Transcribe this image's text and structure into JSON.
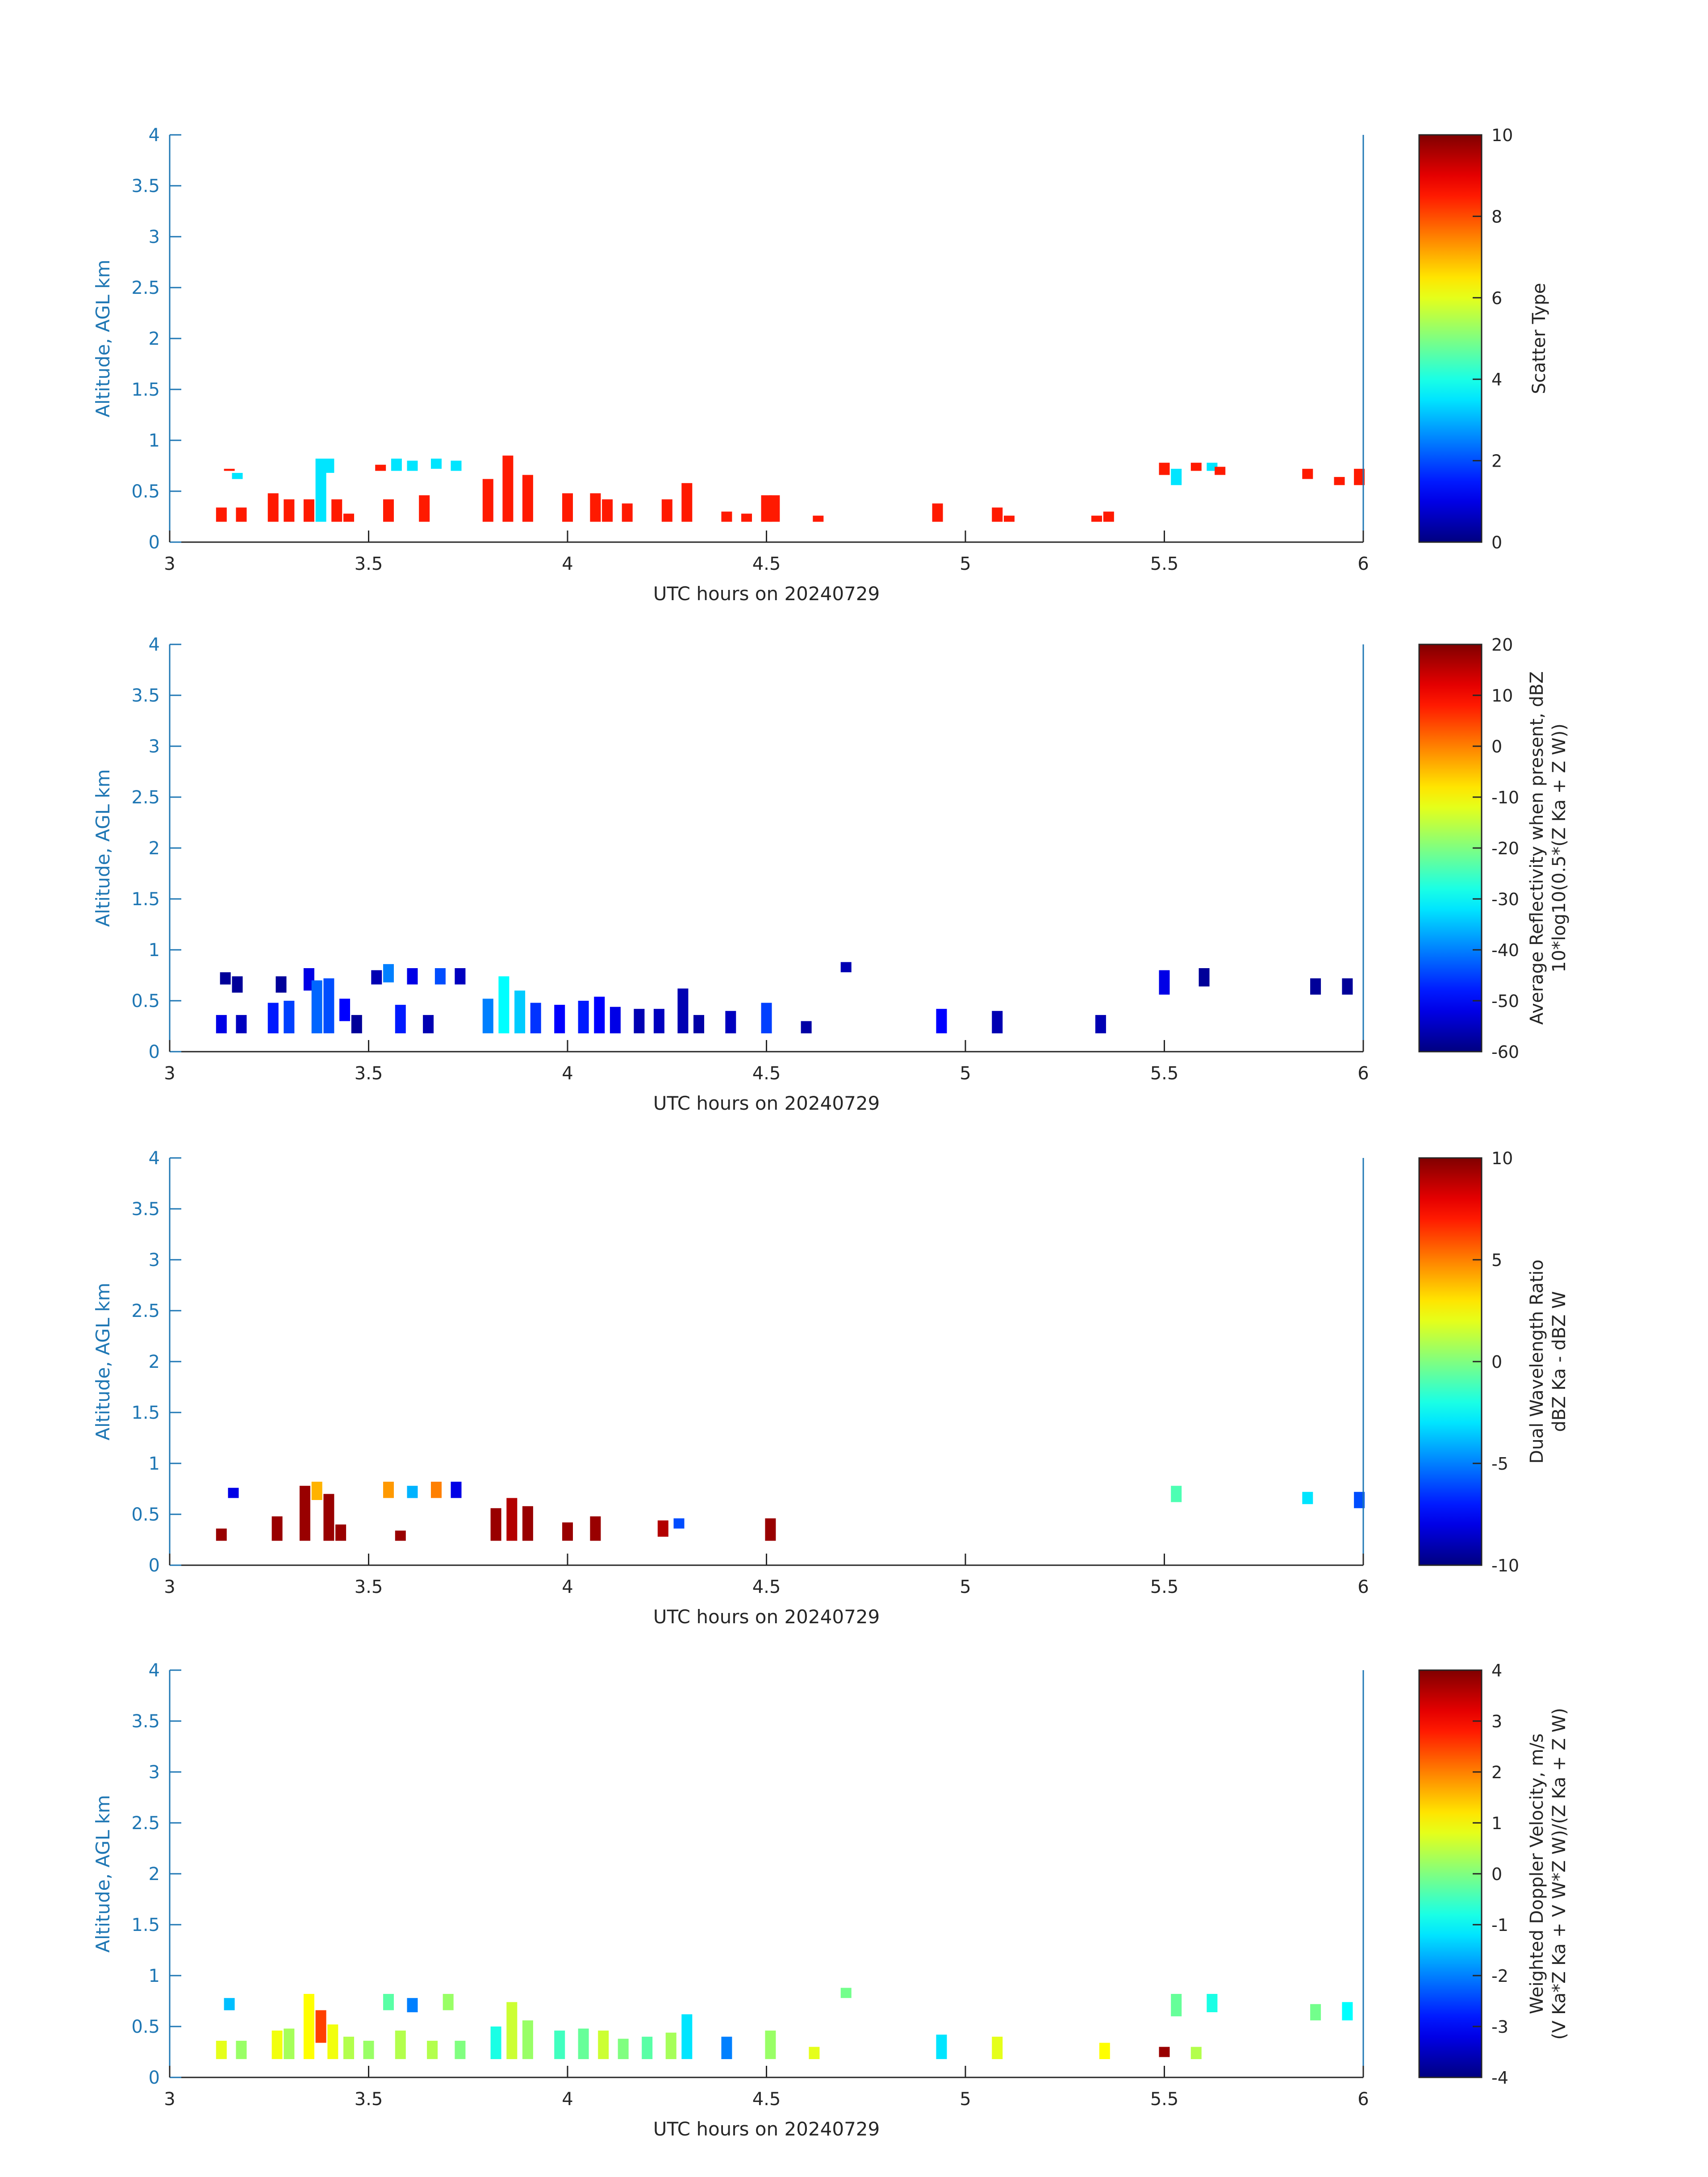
{
  "colors": {
    "axis_blue": "#1f77b4",
    "text_dark": "#262626",
    "colormap": "jet"
  },
  "chart_data": [
    {
      "type": "heatmap",
      "xlabel": "UTC hours on 20240729",
      "ylabel": "Altitude, AGL km",
      "xlim": [
        3,
        6
      ],
      "ylim": [
        0,
        4
      ],
      "xticks": [
        "3",
        "3.5",
        "4",
        "4.5",
        "5",
        "5.5",
        "6"
      ],
      "yticks": [
        "0",
        "0.5",
        "1",
        "1.5",
        "2",
        "2.5",
        "3",
        "3.5",
        "4"
      ],
      "colorbar": {
        "label": "Scatter Type",
        "label2": "",
        "range": [
          0,
          10
        ],
        "ticks": [
          "0",
          "2",
          "4",
          "6",
          "8",
          "10"
        ]
      },
      "cells": [
        [
          3.13,
          0.2,
          0.34,
          8.5
        ],
        [
          3.15,
          0.7,
          0.72,
          8.5
        ],
        [
          3.17,
          0.62,
          0.68,
          3.5
        ],
        [
          3.18,
          0.2,
          0.34,
          8.5
        ],
        [
          3.26,
          0.2,
          0.48,
          8.5
        ],
        [
          3.3,
          0.2,
          0.42,
          8.5
        ],
        [
          3.35,
          0.2,
          0.42,
          8.5
        ],
        [
          3.38,
          0.2,
          0.82,
          3.5
        ],
        [
          3.4,
          0.68,
          0.82,
          3.5
        ],
        [
          3.42,
          0.2,
          0.42,
          8.5
        ],
        [
          3.45,
          0.2,
          0.28,
          8.5
        ],
        [
          3.53,
          0.7,
          0.76,
          8.5
        ],
        [
          3.55,
          0.2,
          0.42,
          8.5
        ],
        [
          3.57,
          0.7,
          0.82,
          3.5
        ],
        [
          3.61,
          0.7,
          0.8,
          3.5
        ],
        [
          3.64,
          0.2,
          0.46,
          8.5
        ],
        [
          3.67,
          0.72,
          0.82,
          3.5
        ],
        [
          3.72,
          0.7,
          0.8,
          3.5
        ],
        [
          3.8,
          0.2,
          0.62,
          8.5
        ],
        [
          3.85,
          0.2,
          0.85,
          8.5
        ],
        [
          3.9,
          0.2,
          0.66,
          8.5
        ],
        [
          4.0,
          0.2,
          0.48,
          8.5
        ],
        [
          4.07,
          0.2,
          0.48,
          8.5
        ],
        [
          4.1,
          0.2,
          0.42,
          8.5
        ],
        [
          4.15,
          0.2,
          0.38,
          8.5
        ],
        [
          4.25,
          0.2,
          0.42,
          8.5
        ],
        [
          4.3,
          0.2,
          0.58,
          8.5
        ],
        [
          4.4,
          0.2,
          0.3,
          8.5
        ],
        [
          4.45,
          0.2,
          0.28,
          8.5
        ],
        [
          4.5,
          0.2,
          0.46,
          8.5
        ],
        [
          4.52,
          0.2,
          0.46,
          8.5
        ],
        [
          4.63,
          0.2,
          0.26,
          8.5
        ],
        [
          4.93,
          0.2,
          0.38,
          8.5
        ],
        [
          5.08,
          0.2,
          0.34,
          8.5
        ],
        [
          5.11,
          0.2,
          0.26,
          8.5
        ],
        [
          5.33,
          0.2,
          0.26,
          8.5
        ],
        [
          5.36,
          0.2,
          0.3,
          8.5
        ],
        [
          5.5,
          0.66,
          0.78,
          8.5
        ],
        [
          5.53,
          0.56,
          0.72,
          3.5
        ],
        [
          5.58,
          0.7,
          0.78,
          8.5
        ],
        [
          5.62,
          0.7,
          0.78,
          3.5
        ],
        [
          5.64,
          0.66,
          0.74,
          8.5
        ],
        [
          5.86,
          0.62,
          0.72,
          8.5
        ],
        [
          5.94,
          0.56,
          0.64,
          8.5
        ],
        [
          5.99,
          0.56,
          0.72,
          8.5
        ]
      ]
    },
    {
      "type": "heatmap",
      "xlabel": "UTC hours on 20240729",
      "ylabel": "Altitude, AGL km",
      "xlim": [
        3,
        6
      ],
      "ylim": [
        0,
        4
      ],
      "xticks": [
        "3",
        "3.5",
        "4",
        "4.5",
        "5",
        "5.5",
        "6"
      ],
      "yticks": [
        "0",
        "0.5",
        "1",
        "1.5",
        "2",
        "2.5",
        "3",
        "3.5",
        "4"
      ],
      "colorbar": {
        "label": "Average Reflectivity when present, dBZ",
        "label2": "10*log10(0.5*(Z Ka + Z W))",
        "range": [
          -60,
          20
        ],
        "ticks": [
          "-60",
          "-50",
          "-40",
          "-30",
          "-20",
          "-10",
          "0",
          "10",
          "20"
        ]
      },
      "cells": [
        [
          3.13,
          0.18,
          0.36,
          -52
        ],
        [
          3.14,
          0.66,
          0.78,
          -58
        ],
        [
          3.17,
          0.58,
          0.74,
          -58
        ],
        [
          3.18,
          0.18,
          0.36,
          -55
        ],
        [
          3.26,
          0.18,
          0.48,
          -48
        ],
        [
          3.28,
          0.58,
          0.74,
          -58
        ],
        [
          3.3,
          0.18,
          0.5,
          -45
        ],
        [
          3.35,
          0.6,
          0.82,
          -52
        ],
        [
          3.37,
          0.18,
          0.7,
          -42
        ],
        [
          3.4,
          0.18,
          0.72,
          -44
        ],
        [
          3.44,
          0.3,
          0.52,
          -50
        ],
        [
          3.47,
          0.18,
          0.36,
          -58
        ],
        [
          3.52,
          0.66,
          0.8,
          -56
        ],
        [
          3.55,
          0.68,
          0.86,
          -40
        ],
        [
          3.58,
          0.18,
          0.46,
          -48
        ],
        [
          3.61,
          0.66,
          0.82,
          -52
        ],
        [
          3.65,
          0.18,
          0.36,
          -56
        ],
        [
          3.68,
          0.66,
          0.82,
          -44
        ],
        [
          3.73,
          0.66,
          0.82,
          -55
        ],
        [
          3.8,
          0.18,
          0.52,
          -40
        ],
        [
          3.84,
          0.18,
          0.74,
          -30
        ],
        [
          3.88,
          0.18,
          0.6,
          -34
        ],
        [
          3.92,
          0.18,
          0.48,
          -46
        ],
        [
          3.98,
          0.18,
          0.46,
          -50
        ],
        [
          4.04,
          0.18,
          0.5,
          -48
        ],
        [
          4.08,
          0.18,
          0.54,
          -50
        ],
        [
          4.12,
          0.18,
          0.44,
          -52
        ],
        [
          4.18,
          0.18,
          0.42,
          -56
        ],
        [
          4.23,
          0.18,
          0.42,
          -55
        ],
        [
          4.29,
          0.18,
          0.62,
          -56
        ],
        [
          4.33,
          0.18,
          0.36,
          -57
        ],
        [
          4.41,
          0.18,
          0.4,
          -55
        ],
        [
          4.5,
          0.18,
          0.48,
          -45
        ],
        [
          4.6,
          0.18,
          0.3,
          -57
        ],
        [
          4.7,
          0.78,
          0.88,
          -56
        ],
        [
          4.94,
          0.18,
          0.42,
          -50
        ],
        [
          5.08,
          0.18,
          0.4,
          -56
        ],
        [
          5.34,
          0.18,
          0.36,
          -56
        ],
        [
          5.5,
          0.56,
          0.8,
          -52
        ],
        [
          5.6,
          0.64,
          0.82,
          -58
        ],
        [
          5.88,
          0.56,
          0.72,
          -58
        ],
        [
          5.96,
          0.56,
          0.72,
          -58
        ]
      ]
    },
    {
      "type": "heatmap",
      "xlabel": "UTC hours on 20240729",
      "ylabel": "Altitude, AGL km",
      "xlim": [
        3,
        6
      ],
      "ylim": [
        0,
        4
      ],
      "xticks": [
        "3",
        "3.5",
        "4",
        "4.5",
        "5",
        "5.5",
        "6"
      ],
      "yticks": [
        "0",
        "0.5",
        "1",
        "1.5",
        "2",
        "2.5",
        "3",
        "3.5",
        "4"
      ],
      "colorbar": {
        "label": "Dual Wavelength Ratio",
        "label2": "dBZ Ka - dBZ W",
        "range": [
          -10,
          10
        ],
        "ticks": [
          "-10",
          "-5",
          "0",
          "5",
          "10"
        ]
      },
      "cells": [
        [
          3.13,
          0.24,
          0.36,
          9.5
        ],
        [
          3.16,
          0.66,
          0.76,
          -8
        ],
        [
          3.27,
          0.24,
          0.48,
          9.5
        ],
        [
          3.34,
          0.24,
          0.78,
          9.5
        ],
        [
          3.37,
          0.64,
          0.82,
          4
        ],
        [
          3.4,
          0.24,
          0.7,
          9.5
        ],
        [
          3.43,
          0.24,
          0.4,
          9.5
        ],
        [
          3.55,
          0.66,
          0.82,
          4.5
        ],
        [
          3.58,
          0.24,
          0.34,
          9.5
        ],
        [
          3.61,
          0.66,
          0.78,
          -4
        ],
        [
          3.67,
          0.66,
          0.82,
          5
        ],
        [
          3.72,
          0.66,
          0.82,
          -8
        ],
        [
          3.82,
          0.24,
          0.56,
          9.5
        ],
        [
          3.86,
          0.24,
          0.66,
          9
        ],
        [
          3.9,
          0.24,
          0.58,
          9.5
        ],
        [
          4.0,
          0.24,
          0.42,
          9.5
        ],
        [
          4.07,
          0.24,
          0.48,
          9.5
        ],
        [
          4.24,
          0.28,
          0.44,
          9
        ],
        [
          4.28,
          0.36,
          0.46,
          -6
        ],
        [
          4.51,
          0.24,
          0.46,
          9.5
        ],
        [
          5.53,
          0.62,
          0.78,
          -1
        ],
        [
          5.86,
          0.6,
          0.72,
          -3
        ],
        [
          5.99,
          0.56,
          0.72,
          -6
        ]
      ]
    },
    {
      "type": "heatmap",
      "xlabel": "UTC hours on 20240729",
      "ylabel": "Altitude, AGL km",
      "xlim": [
        3,
        6
      ],
      "ylim": [
        0,
        4
      ],
      "xticks": [
        "3",
        "3.5",
        "4",
        "4.5",
        "5",
        "5.5",
        "6"
      ],
      "yticks": [
        "0",
        "0.5",
        "1",
        "1.5",
        "2",
        "2.5",
        "3",
        "3.5",
        "4"
      ],
      "colorbar": {
        "label": "Weighted Doppler Velocity, m/s",
        "label2": "(V Ka*Z Ka + V W*Z W)/(Z Ka + Z W)",
        "range": [
          -4,
          4
        ],
        "ticks": [
          "-4",
          "-3",
          "-2",
          "-1",
          "0",
          "1",
          "2",
          "3",
          "4"
        ]
      },
      "cells": [
        [
          3.13,
          0.18,
          0.36,
          0.8
        ],
        [
          3.15,
          0.66,
          0.78,
          -1.5
        ],
        [
          3.18,
          0.18,
          0.36,
          0.2
        ],
        [
          3.27,
          0.18,
          0.46,
          0.9
        ],
        [
          3.3,
          0.18,
          0.48,
          0.3
        ],
        [
          3.35,
          0.18,
          0.82,
          1.0
        ],
        [
          3.38,
          0.34,
          0.66,
          2.5
        ],
        [
          3.41,
          0.18,
          0.52,
          0.9
        ],
        [
          3.45,
          0.18,
          0.4,
          0.4
        ],
        [
          3.5,
          0.18,
          0.36,
          0.2
        ],
        [
          3.55,
          0.66,
          0.82,
          -0.3
        ],
        [
          3.58,
          0.18,
          0.46,
          0.4
        ],
        [
          3.61,
          0.64,
          0.78,
          -2.0
        ],
        [
          3.66,
          0.18,
          0.36,
          0.4
        ],
        [
          3.7,
          0.66,
          0.82,
          0.2
        ],
        [
          3.73,
          0.18,
          0.36,
          0.0
        ],
        [
          3.82,
          0.18,
          0.5,
          -0.8
        ],
        [
          3.86,
          0.18,
          0.74,
          0.6
        ],
        [
          3.9,
          0.18,
          0.56,
          0.2
        ],
        [
          3.98,
          0.18,
          0.46,
          -0.5
        ],
        [
          4.04,
          0.18,
          0.48,
          -0.2
        ],
        [
          4.09,
          0.18,
          0.46,
          0.6
        ],
        [
          4.14,
          0.18,
          0.38,
          0.0
        ],
        [
          4.2,
          0.18,
          0.4,
          -0.3
        ],
        [
          4.26,
          0.18,
          0.44,
          0.3
        ],
        [
          4.3,
          0.18,
          0.62,
          -1.2
        ],
        [
          4.4,
          0.18,
          0.4,
          -2.0
        ],
        [
          4.51,
          0.18,
          0.46,
          0.2
        ],
        [
          4.62,
          0.18,
          0.3,
          0.8
        ],
        [
          4.7,
          0.78,
          0.88,
          -0.1
        ],
        [
          4.94,
          0.18,
          0.42,
          -1.2
        ],
        [
          5.08,
          0.18,
          0.4,
          0.8
        ],
        [
          5.35,
          0.18,
          0.34,
          1.0
        ],
        [
          5.5,
          0.2,
          0.3,
          3.8
        ],
        [
          5.53,
          0.6,
          0.82,
          -0.2
        ],
        [
          5.58,
          0.18,
          0.3,
          0.4
        ],
        [
          5.62,
          0.64,
          0.82,
          -0.8
        ],
        [
          5.88,
          0.56,
          0.72,
          -0.1
        ],
        [
          5.96,
          0.56,
          0.74,
          -1.0
        ]
      ]
    }
  ]
}
